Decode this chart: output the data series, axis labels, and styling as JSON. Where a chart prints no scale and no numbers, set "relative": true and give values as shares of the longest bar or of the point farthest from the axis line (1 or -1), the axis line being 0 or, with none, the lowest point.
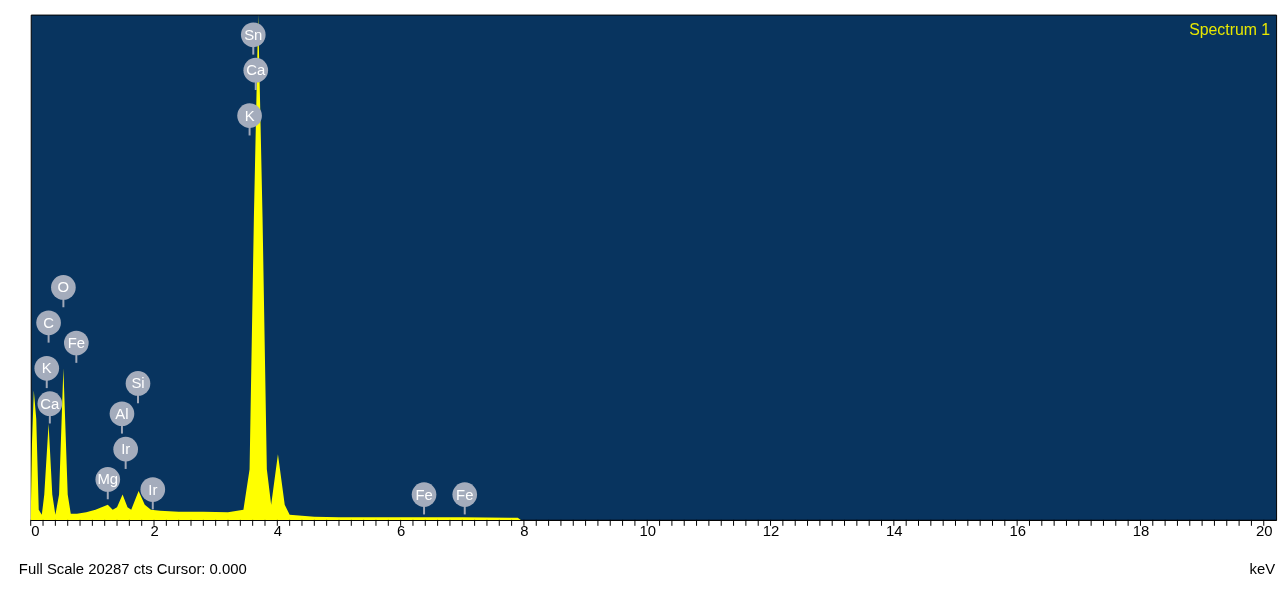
{
  "chart_data": {
    "type": "area",
    "title": "Spectrum 1",
    "xlabel": "keV",
    "relative": true,
    "grid": false,
    "x": [
      0,
      0.02,
      0.05,
      0.09,
      0.13,
      0.18,
      0.22,
      0.29,
      0.35,
      0.4,
      0.46,
      0.53,
      0.6,
      0.65,
      0.75,
      0.9,
      1.05,
      1.15,
      1.25,
      1.33,
      1.4,
      1.49,
      1.57,
      1.63,
      1.75,
      1.85,
      1.95,
      2.1,
      2.4,
      2.8,
      3.2,
      3.45,
      3.55,
      3.62,
      3.69,
      3.76,
      3.83,
      3.9,
      4.01,
      4.12,
      4.2,
      4.4,
      4.6,
      5.0,
      6.0,
      7.0,
      7.9,
      7.95
    ],
    "series": [
      {
        "color": "#ffff00",
        "values": [
          0,
          0.15,
          0.256,
          0.2,
          0.02,
          0.01,
          0.05,
          0.19,
          0.05,
          0.01,
          0.05,
          0.3,
          0.05,
          0.012,
          0.012,
          0.015,
          0.02,
          0.025,
          0.03,
          0.02,
          0.025,
          0.05,
          0.025,
          0.02,
          0.057,
          0.03,
          0.02,
          0.018,
          0.016,
          0.016,
          0.015,
          0.02,
          0.1,
          0.6,
          1.0,
          0.6,
          0.1,
          0.03,
          0.13,
          0.03,
          0.01,
          0.008,
          0.006,
          0.005,
          0.005,
          0.005,
          0.004,
          0
        ]
      }
    ],
    "xlim": [
      0,
      20.2
    ],
    "xticks": [
      0,
      {
        "value": 0.2,
        "label": null
      },
      {
        "value": 0.4,
        "label": null
      },
      {
        "value": 0.6,
        "label": null
      },
      {
        "value": 0.8,
        "label": null
      },
      {
        "value": 1,
        "label": null
      },
      {
        "value": 1.2,
        "label": null
      },
      {
        "value": 1.4,
        "label": null
      },
      {
        "value": 1.6,
        "label": null
      },
      {
        "value": 1.8,
        "label": null
      },
      2,
      {
        "value": 2.2,
        "label": null
      },
      {
        "value": 2.4,
        "label": null
      },
      {
        "value": 2.6,
        "label": null
      },
      {
        "value": 2.8,
        "label": null
      },
      {
        "value": 3,
        "label": null
      },
      {
        "value": 3.2,
        "label": null
      },
      {
        "value": 3.4,
        "label": null
      },
      {
        "value": 3.6,
        "label": null
      },
      {
        "value": 3.8,
        "label": null
      },
      4,
      {
        "value": 4.2,
        "label": null
      },
      {
        "value": 4.4,
        "label": null
      },
      {
        "value": 4.6,
        "label": null
      },
      {
        "value": 4.8,
        "label": null
      },
      {
        "value": 5,
        "label": null
      },
      {
        "value": 5.2,
        "label": null
      },
      {
        "value": 5.4,
        "label": null
      },
      {
        "value": 5.6,
        "label": null
      },
      {
        "value": 5.8,
        "label": null
      },
      6,
      {
        "value": 6.2,
        "label": null
      },
      {
        "value": 6.4,
        "label": null
      },
      {
        "value": 6.6,
        "label": null
      },
      {
        "value": 6.8,
        "label": null
      },
      {
        "value": 7,
        "label": null
      },
      {
        "value": 7.2,
        "label": null
      },
      {
        "value": 7.4,
        "label": null
      },
      {
        "value": 7.6,
        "label": null
      },
      {
        "value": 7.8,
        "label": null
      },
      8,
      {
        "value": 8.2,
        "label": null
      },
      {
        "value": 8.4,
        "label": null
      },
      {
        "value": 8.6,
        "label": null
      },
      {
        "value": 8.8,
        "label": null
      },
      {
        "value": 9,
        "label": null
      },
      {
        "value": 9.2,
        "label": null
      },
      {
        "value": 9.4,
        "label": null
      },
      {
        "value": 9.6,
        "label": null
      },
      {
        "value": 9.8,
        "label": null
      },
      10,
      {
        "value": 10.2,
        "label": null
      },
      {
        "value": 10.4,
        "label": null
      },
      {
        "value": 10.6,
        "label": null
      },
      {
        "value": 10.8,
        "label": null
      },
      {
        "value": 11,
        "label": null
      },
      {
        "value": 11.2,
        "label": null
      },
      {
        "value": 11.4,
        "label": null
      },
      {
        "value": 11.6,
        "label": null
      },
      {
        "value": 11.8,
        "label": null
      },
      12,
      {
        "value": 12.2,
        "label": null
      },
      {
        "value": 12.4,
        "label": null
      },
      {
        "value": 12.6,
        "label": null
      },
      {
        "value": 12.8,
        "label": null
      },
      {
        "value": 13,
        "label": null
      },
      {
        "value": 13.2,
        "label": null
      },
      {
        "value": 13.4,
        "label": null
      },
      {
        "value": 13.6,
        "label": null
      },
      {
        "value": 13.8,
        "label": null
      },
      14,
      {
        "value": 14.2,
        "label": null
      },
      {
        "value": 14.4,
        "label": null
      },
      {
        "value": 14.6,
        "label": null
      },
      {
        "value": 14.8,
        "label": null
      },
      {
        "value": 15,
        "label": null
      },
      {
        "value": 15.2,
        "label": null
      },
      {
        "value": 15.4,
        "label": null
      },
      {
        "value": 15.6,
        "label": null
      },
      {
        "value": 15.8,
        "label": null
      },
      16,
      {
        "value": 16.2,
        "label": null
      },
      {
        "value": 16.4,
        "label": null
      },
      {
        "value": 16.6,
        "label": null
      },
      {
        "value": 16.8,
        "label": null
      },
      {
        "value": 17,
        "label": null
      },
      {
        "value": 17.2,
        "label": null
      },
      {
        "value": 17.4,
        "label": null
      },
      {
        "value": 17.6,
        "label": null
      },
      {
        "value": 17.8,
        "label": null
      },
      18,
      {
        "value": 18.2,
        "label": null
      },
      {
        "value": 18.4,
        "label": null
      },
      {
        "value": 18.6,
        "label": null
      },
      {
        "value": 18.8,
        "label": null
      },
      {
        "value": 19,
        "label": null
      },
      {
        "value": 19.2,
        "label": null
      },
      {
        "value": 19.4,
        "label": null
      },
      {
        "value": 19.6,
        "label": null
      },
      {
        "value": 19.8,
        "label": null
      },
      20
    ],
    "annotations": [
      {
        "text": "O",
        "x": 0.53,
        "y": 0.46
      },
      {
        "text": "C",
        "x": 0.29,
        "y": 0.39
      },
      {
        "text": "Fe",
        "x": 0.74,
        "y": 0.35
      },
      {
        "text": "K",
        "x": 0.26,
        "y": 0.3
      },
      {
        "text": "Ca",
        "x": 0.31,
        "y": 0.23
      },
      {
        "text": "Si",
        "x": 1.74,
        "y": 0.27
      },
      {
        "text": "Al",
        "x": 1.48,
        "y": 0.21
      },
      {
        "text": "Ir",
        "x": 1.54,
        "y": 0.14
      },
      {
        "text": "Mg",
        "x": 1.25,
        "y": 0.08
      },
      {
        "text": "Ir",
        "x": 1.98,
        "y": 0.06
      },
      {
        "text": "Fe",
        "x": 6.38,
        "y": 0.05
      },
      {
        "text": "Fe",
        "x": 7.04,
        "y": 0.05
      },
      {
        "text": "Sn",
        "x": 3.61,
        "y": 0.96
      },
      {
        "text": "Ca",
        "x": 3.65,
        "y": 0.89
      },
      {
        "text": "K",
        "x": 3.55,
        "y": 0.8
      },
      "Full Scale 20287 cts Cursor: 0.000"
    ]
  }
}
